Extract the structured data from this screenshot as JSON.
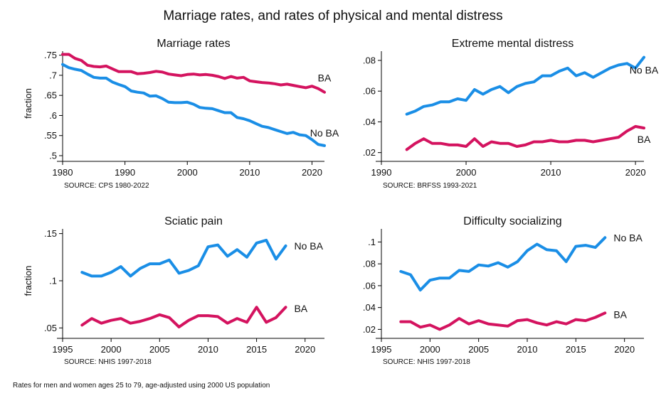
{
  "figure": {
    "title": "Marriage rates, and rates of physical and mental distress",
    "note": "Rates for men and women ages 25 to 79, age-adjusted using 2000 US population"
  },
  "colors": {
    "no_ba": "#1a8ee6",
    "ba": "#d4135f"
  },
  "chart_data": [
    {
      "type": "line",
      "title": "Marriage rates",
      "ylabel": "fraction",
      "source": "SOURCE: CPS 1980-2022",
      "xlim": [
        1980,
        2022
      ],
      "ylim": [
        0.5,
        0.76
      ],
      "xticks": [
        1980,
        1990,
        2000,
        2010,
        2020
      ],
      "xtick_labels": [
        "1980",
        "1990",
        "2000",
        "2010",
        "2020"
      ],
      "yticks": [
        0.5,
        0.55,
        0.6,
        0.65,
        0.7,
        0.75
      ],
      "ytick_labels": [
        ".5",
        ".55",
        ".6",
        ".65",
        ".7",
        ".75"
      ],
      "series": [
        {
          "name": "BA",
          "color": "#d4135f",
          "x": [
            1980,
            1981,
            1982,
            1983,
            1984,
            1985,
            1986,
            1987,
            1988,
            1989,
            1990,
            1991,
            1992,
            1993,
            1994,
            1995,
            1996,
            1997,
            1998,
            1999,
            2000,
            2001,
            2002,
            2003,
            2004,
            2005,
            2006,
            2007,
            2008,
            2009,
            2010,
            2011,
            2012,
            2013,
            2014,
            2015,
            2016,
            2017,
            2018,
            2019,
            2020,
            2021,
            2022
          ],
          "y": [
            0.752,
            0.752,
            0.742,
            0.737,
            0.725,
            0.722,
            0.721,
            0.723,
            0.716,
            0.709,
            0.709,
            0.709,
            0.704,
            0.705,
            0.707,
            0.71,
            0.708,
            0.703,
            0.701,
            0.699,
            0.702,
            0.703,
            0.701,
            0.702,
            0.7,
            0.697,
            0.692,
            0.697,
            0.693,
            0.695,
            0.686,
            0.684,
            0.682,
            0.681,
            0.679,
            0.676,
            0.678,
            0.675,
            0.672,
            0.669,
            0.673,
            0.667,
            0.658
          ]
        },
        {
          "name": "No BA",
          "color": "#1a8ee6",
          "x": [
            1980,
            1981,
            1982,
            1983,
            1984,
            1985,
            1986,
            1987,
            1988,
            1989,
            1990,
            1991,
            1992,
            1993,
            1994,
            1995,
            1996,
            1997,
            1998,
            1999,
            2000,
            2001,
            2002,
            2003,
            2004,
            2005,
            2006,
            2007,
            2008,
            2009,
            2010,
            2011,
            2012,
            2013,
            2014,
            2015,
            2016,
            2017,
            2018,
            2019,
            2020,
            2021,
            2022
          ],
          "y": [
            0.727,
            0.719,
            0.715,
            0.712,
            0.703,
            0.695,
            0.693,
            0.693,
            0.683,
            0.677,
            0.672,
            0.661,
            0.658,
            0.656,
            0.648,
            0.649,
            0.642,
            0.633,
            0.632,
            0.632,
            0.633,
            0.628,
            0.62,
            0.618,
            0.617,
            0.612,
            0.607,
            0.607,
            0.595,
            0.592,
            0.587,
            0.58,
            0.573,
            0.57,
            0.565,
            0.56,
            0.555,
            0.558,
            0.552,
            0.55,
            0.54,
            0.528,
            0.525
          ]
        }
      ]
    },
    {
      "type": "line",
      "title": "Extreme mental distress",
      "ylabel": "",
      "source": "SOURCE: BRFSS 1993-2021",
      "xlim": [
        1990,
        2021
      ],
      "ylim": [
        0.018,
        0.086
      ],
      "xticks": [
        1990,
        2000,
        2010,
        2020
      ],
      "xtick_labels": [
        "1990",
        "2000",
        "2010",
        "2020"
      ],
      "yticks": [
        0.02,
        0.04,
        0.06,
        0.08
      ],
      "ytick_labels": [
        ".02",
        ".04",
        ".06",
        ".08"
      ],
      "series": [
        {
          "name": "No BA",
          "color": "#1a8ee6",
          "x": [
            1993,
            1994,
            1995,
            1996,
            1997,
            1998,
            1999,
            2000,
            2001,
            2002,
            2003,
            2004,
            2005,
            2006,
            2007,
            2008,
            2009,
            2010,
            2011,
            2012,
            2013,
            2014,
            2015,
            2016,
            2017,
            2018,
            2019,
            2020,
            2021
          ],
          "y": [
            0.045,
            0.047,
            0.05,
            0.051,
            0.053,
            0.053,
            0.055,
            0.054,
            0.061,
            0.058,
            0.061,
            0.063,
            0.059,
            0.063,
            0.065,
            0.066,
            0.07,
            0.07,
            0.073,
            0.075,
            0.07,
            0.072,
            0.069,
            0.072,
            0.075,
            0.077,
            0.078,
            0.075,
            0.082
          ]
        },
        {
          "name": "BA",
          "color": "#d4135f",
          "x": [
            1993,
            1994,
            1995,
            1996,
            1997,
            1998,
            1999,
            2000,
            2001,
            2002,
            2003,
            2004,
            2005,
            2006,
            2007,
            2008,
            2009,
            2010,
            2011,
            2012,
            2013,
            2014,
            2015,
            2016,
            2017,
            2018,
            2019,
            2020,
            2021
          ],
          "y": [
            0.022,
            0.026,
            0.029,
            0.026,
            0.026,
            0.025,
            0.025,
            0.024,
            0.029,
            0.024,
            0.027,
            0.026,
            0.026,
            0.024,
            0.025,
            0.027,
            0.027,
            0.028,
            0.027,
            0.027,
            0.028,
            0.028,
            0.027,
            0.028,
            0.029,
            0.03,
            0.034,
            0.037,
            0.036
          ]
        }
      ]
    },
    {
      "type": "line",
      "title": "Sciatic pain",
      "ylabel": "fraction",
      "source": "SOURCE: NHIS 1997-2018",
      "xlim": [
        1995,
        2022
      ],
      "ylim": [
        0.045,
        0.155
      ],
      "xticks": [
        1995,
        2000,
        2005,
        2010,
        2015,
        2020
      ],
      "xtick_labels": [
        "1995",
        "2000",
        "2005",
        "2010",
        "2015",
        "2020"
      ],
      "yticks": [
        0.05,
        0.1,
        0.15
      ],
      "ytick_labels": [
        ".05",
        ".1",
        ".15"
      ],
      "series": [
        {
          "name": "No BA",
          "color": "#1a8ee6",
          "x": [
            1997,
            1998,
            1999,
            2000,
            2001,
            2002,
            2003,
            2004,
            2005,
            2006,
            2007,
            2008,
            2009,
            2010,
            2011,
            2012,
            2013,
            2014,
            2015,
            2016,
            2017,
            2018
          ],
          "y": [
            0.109,
            0.105,
            0.105,
            0.109,
            0.115,
            0.105,
            0.113,
            0.118,
            0.118,
            0.122,
            0.108,
            0.111,
            0.116,
            0.136,
            0.138,
            0.126,
            0.133,
            0.125,
            0.14,
            0.143,
            0.123,
            0.137
          ]
        },
        {
          "name": "BA",
          "color": "#d4135f",
          "x": [
            1997,
            1998,
            1999,
            2000,
            2001,
            2002,
            2003,
            2004,
            2005,
            2006,
            2007,
            2008,
            2009,
            2010,
            2011,
            2012,
            2013,
            2014,
            2015,
            2016,
            2017,
            2018
          ],
          "y": [
            0.053,
            0.06,
            0.055,
            0.058,
            0.06,
            0.055,
            0.057,
            0.06,
            0.064,
            0.061,
            0.051,
            0.058,
            0.063,
            0.063,
            0.062,
            0.055,
            0.06,
            0.056,
            0.072,
            0.056,
            0.061,
            0.072
          ]
        }
      ]
    },
    {
      "type": "line",
      "title": "Difficulty socializing",
      "ylabel": "",
      "source": "SOURCE: NHIS 1997-2018",
      "xlim": [
        1995,
        2022
      ],
      "ylim": [
        0.017,
        0.112
      ],
      "xticks": [
        1995,
        2000,
        2005,
        2010,
        2015,
        2020
      ],
      "xtick_labels": [
        "1995",
        "2000",
        "2005",
        "2010",
        "2015",
        "2020"
      ],
      "yticks": [
        0.02,
        0.04,
        0.06,
        0.08,
        0.1
      ],
      "ytick_labels": [
        ".02",
        ".04",
        ".06",
        ".08",
        ".1"
      ],
      "series": [
        {
          "name": "No BA",
          "color": "#1a8ee6",
          "x": [
            1997,
            1998,
            1999,
            2000,
            2001,
            2002,
            2003,
            2004,
            2005,
            2006,
            2007,
            2008,
            2009,
            2010,
            2011,
            2012,
            2013,
            2014,
            2015,
            2016,
            2017,
            2018
          ],
          "y": [
            0.073,
            0.07,
            0.056,
            0.065,
            0.067,
            0.067,
            0.074,
            0.073,
            0.079,
            0.078,
            0.081,
            0.077,
            0.082,
            0.092,
            0.098,
            0.093,
            0.092,
            0.082,
            0.096,
            0.097,
            0.095,
            0.104
          ]
        },
        {
          "name": "BA",
          "color": "#d4135f",
          "x": [
            1997,
            1998,
            1999,
            2000,
            2001,
            2002,
            2003,
            2004,
            2005,
            2006,
            2007,
            2008,
            2009,
            2010,
            2011,
            2012,
            2013,
            2014,
            2015,
            2016,
            2017,
            2018
          ],
          "y": [
            0.027,
            0.027,
            0.022,
            0.024,
            0.02,
            0.024,
            0.03,
            0.025,
            0.028,
            0.025,
            0.024,
            0.023,
            0.028,
            0.029,
            0.026,
            0.024,
            0.027,
            0.025,
            0.029,
            0.028,
            0.031,
            0.035
          ]
        }
      ]
    }
  ]
}
